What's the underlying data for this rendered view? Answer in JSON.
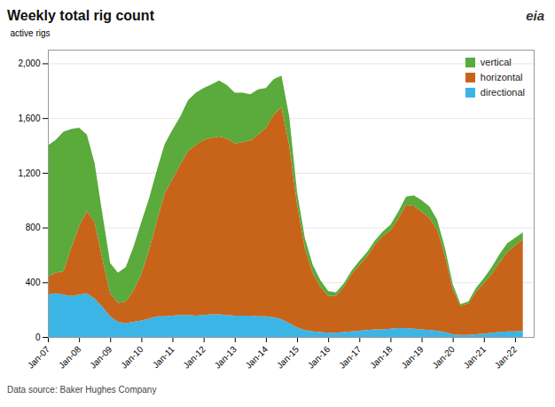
{
  "chart_data": {
    "type": "area",
    "title": "Weekly total rig count",
    "ylabel": "active rigs",
    "annotations": [
      "Data source: Baker Hughes Company",
      "eia"
    ],
    "stacked": true,
    "grid": "y",
    "legend": "upper right",
    "x": [
      2007.0,
      2007.25,
      2007.5,
      2007.75,
      2008.0,
      2008.25,
      2008.5,
      2008.75,
      2009.0,
      2009.25,
      2009.5,
      2009.75,
      2010.0,
      2010.25,
      2010.5,
      2010.75,
      2011.0,
      2011.25,
      2011.5,
      2011.75,
      2012.0,
      2012.25,
      2012.5,
      2012.75,
      2013.0,
      2013.25,
      2013.5,
      2013.75,
      2014.0,
      2014.25,
      2014.5,
      2014.75,
      2015.0,
      2015.25,
      2015.5,
      2015.75,
      2016.0,
      2016.25,
      2016.5,
      2016.75,
      2017.0,
      2017.25,
      2017.5,
      2017.75,
      2018.0,
      2018.25,
      2018.5,
      2018.75,
      2019.0,
      2019.25,
      2019.5,
      2019.75,
      2020.0,
      2020.25,
      2020.5,
      2020.75,
      2021.0,
      2021.25,
      2021.5,
      2021.75,
      2022.0,
      2022.25
    ],
    "series": [
      {
        "name": "directional",
        "color": "#3ab5e6",
        "values": [
          310,
          320,
          310,
          300,
          310,
          320,
          280,
          220,
          150,
          110,
          100,
          110,
          120,
          135,
          150,
          150,
          155,
          160,
          160,
          155,
          160,
          165,
          165,
          160,
          155,
          155,
          155,
          150,
          150,
          145,
          130,
          100,
          70,
          50,
          40,
          35,
          30,
          30,
          35,
          40,
          45,
          50,
          55,
          55,
          60,
          65,
          65,
          60,
          55,
          50,
          45,
          35,
          20,
          15,
          15,
          20,
          25,
          30,
          35,
          40,
          40,
          45
        ]
      },
      {
        "name": "horizontal",
        "color": "#c86419",
        "values": [
          130,
          150,
          170,
          350,
          500,
          600,
          560,
          350,
          170,
          140,
          160,
          230,
          340,
          500,
          700,
          900,
          1000,
          1100,
          1200,
          1250,
          1280,
          1290,
          1300,
          1290,
          1260,
          1270,
          1280,
          1330,
          1380,
          1480,
          1550,
          1300,
          900,
          600,
          430,
          330,
          270,
          270,
          330,
          420,
          480,
          540,
          620,
          680,
          720,
          800,
          900,
          900,
          860,
          820,
          740,
          560,
          330,
          210,
          230,
          310,
          370,
          430,
          510,
          580,
          630,
          670
        ]
      },
      {
        "name": "vertical",
        "color": "#5aaa3c",
        "values": [
          960,
          970,
          1020,
          870,
          720,
          560,
          430,
          330,
          220,
          220,
          250,
          320,
          380,
          380,
          370,
          360,
          360,
          350,
          370,
          380,
          380,
          390,
          410,
          390,
          370,
          360,
          340,
          330,
          290,
          260,
          230,
          210,
          90,
          75,
          60,
          50,
          35,
          25,
          25,
          25,
          30,
          30,
          30,
          35,
          40,
          50,
          60,
          75,
          85,
          85,
          70,
          55,
          35,
          15,
          15,
          30,
          35,
          50,
          60,
          65,
          55,
          50
        ]
      }
    ],
    "xlim": [
      2007,
      2022.6
    ],
    "xticks": [
      {
        "value": 2007,
        "label": "Jan-07"
      },
      {
        "value": 2008,
        "label": "Jan-08"
      },
      {
        "value": 2009,
        "label": "Jan-09"
      },
      {
        "value": 2010,
        "label": "Jan-10"
      },
      {
        "value": 2011,
        "label": "Jan-11"
      },
      {
        "value": 2012,
        "label": "Jan-12"
      },
      {
        "value": 2013,
        "label": "Jan-13"
      },
      {
        "value": 2014,
        "label": "Jan-14"
      },
      {
        "value": 2015,
        "label": "Jan-15"
      },
      {
        "value": 2016,
        "label": "Jan-16"
      },
      {
        "value": 2017,
        "label": "Jan-17"
      },
      {
        "value": 2018,
        "label": "Jan-18"
      },
      {
        "value": 2019,
        "label": "Jan-19"
      },
      {
        "value": 2020,
        "label": "Jan-20"
      },
      {
        "value": 2021,
        "label": "Jan-21"
      },
      {
        "value": 2022,
        "label": "Jan-22"
      }
    ],
    "ylim": [
      0,
      2100
    ],
    "yticks": [
      0,
      400,
      800,
      {
        "value": 1200,
        "label": "1,200"
      },
      {
        "value": 1600,
        "label": "1,600"
      },
      {
        "value": 2000,
        "label": "2,000"
      }
    ]
  }
}
